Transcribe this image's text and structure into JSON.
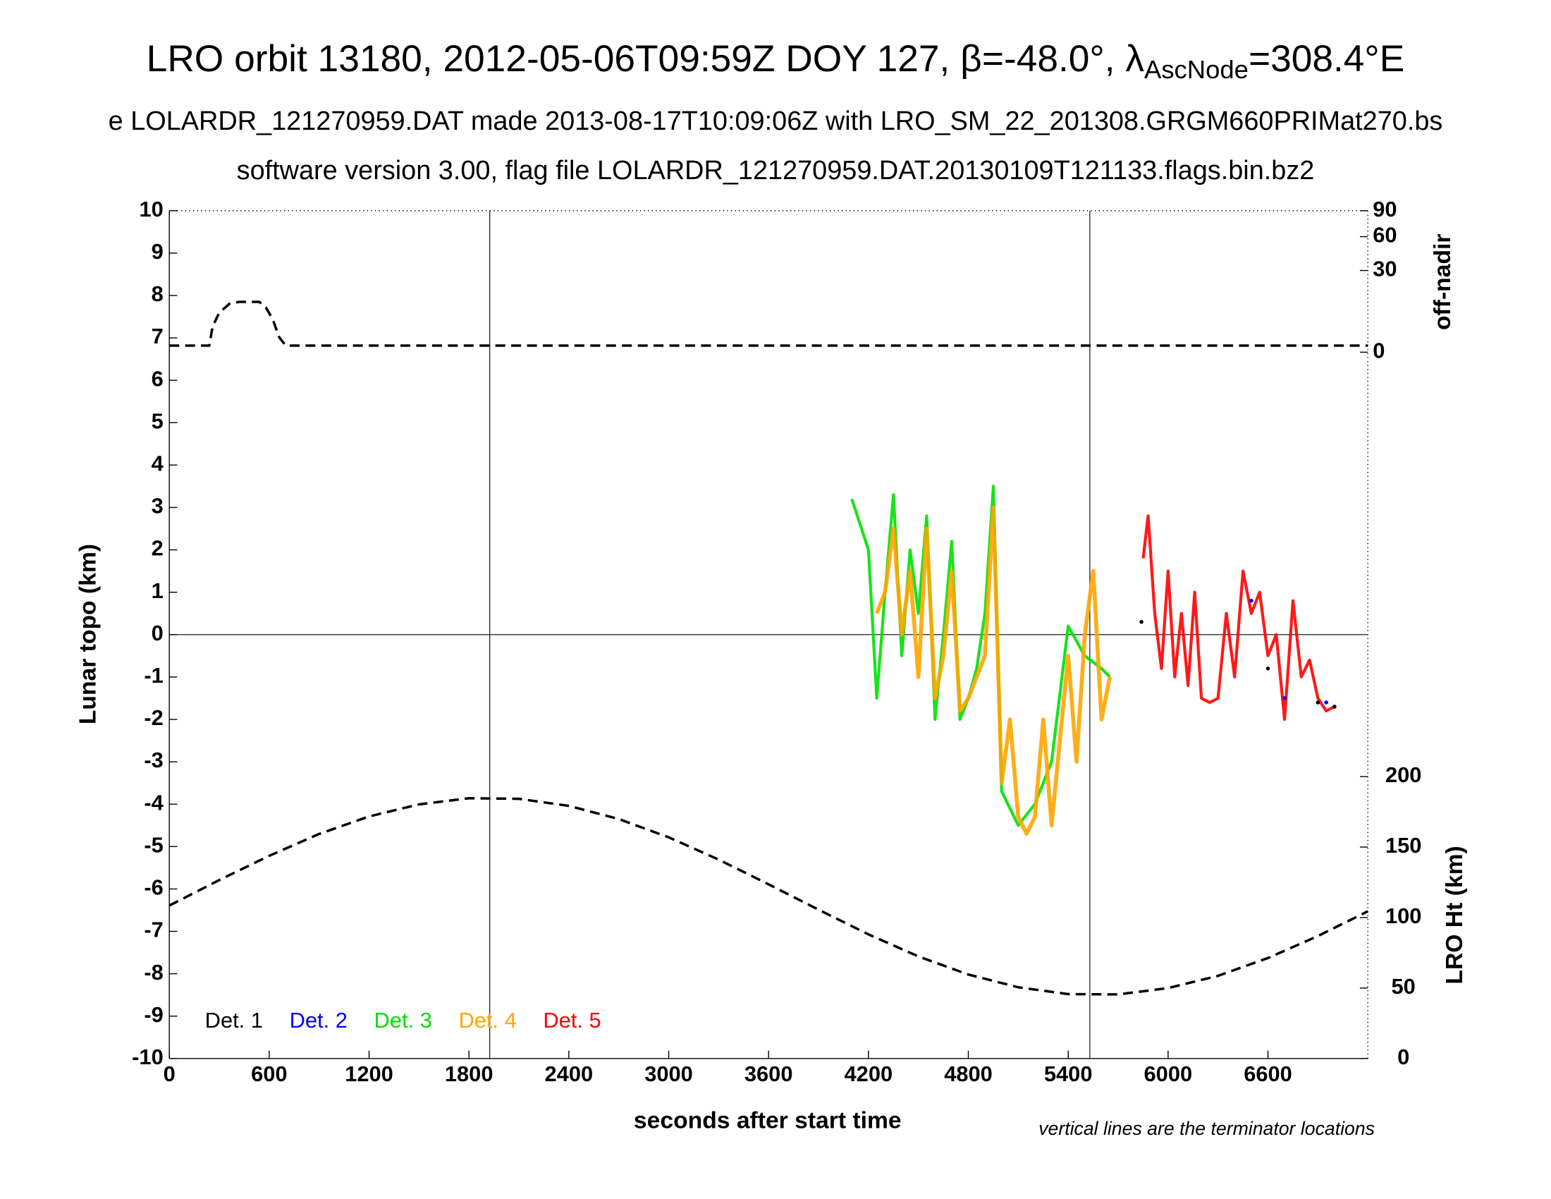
{
  "chart_data": {
    "type": "scatter",
    "title": "LRO orbit 13180, 2012-05-06T09:59Z DOY 127, β=-48.0°, λ",
    "title_sub": "AscNode",
    "title_end": "=308.4°E",
    "subtitle": "e LOLARDR_121270959.DAT made 2013-08-17T10:09:06Z with LRO_SM_22_201308.GRGM660PRIMat270.bs",
    "subtitle2": "software version 3.00, flag file LOLARDR_121270959.DAT.20130109T121133.flags.bin.bz2",
    "xlabel": "seconds after start time",
    "ylabel": "Lunar topo (km)",
    "y2label": "off-nadir",
    "y3label": "LRO Ht (km)",
    "annotation": "vertical lines are the terminator locations",
    "xlim": [
      0,
      7200
    ],
    "xticks": [
      0,
      600,
      1200,
      1800,
      2400,
      3000,
      3600,
      4200,
      4800,
      5400,
      6000,
      6600
    ],
    "ylim": [
      -10,
      10
    ],
    "yticks": [
      -10,
      -9,
      -8,
      -7,
      -6,
      -5,
      -4,
      -3,
      -2,
      -1,
      0,
      1,
      2,
      3,
      4,
      5,
      6,
      7,
      8,
      9,
      10
    ],
    "y2lim": [
      0,
      90
    ],
    "y2scale": "sqrt",
    "y2ticks": [
      0,
      30,
      60,
      90
    ],
    "y3lim": [
      0,
      200
    ],
    "y3ticks": [
      0,
      50,
      100,
      150,
      200
    ],
    "terminators": [
      1925,
      5530
    ],
    "zero_line": 0,
    "series": [
      {
        "name": "Det. 1",
        "color": "#000000",
        "x": [
          5840,
          6600,
          6900,
          7000
        ],
        "values": [
          0.3,
          -0.8,
          -1.6,
          -1.7
        ]
      },
      {
        "name": "Det. 2",
        "color": "#0000ff",
        "x": [
          6500,
          6700,
          6950
        ],
        "values": [
          0.8,
          -1.5,
          -1.6
        ]
      },
      {
        "name": "Det. 3",
        "color": "#00e000",
        "x": [
          4100,
          4200,
          4250,
          4300,
          4350,
          4400,
          4450,
          4500,
          4550,
          4600,
          4650,
          4700,
          4750,
          4800,
          4850,
          4900,
          4950,
          5000,
          5100,
          5200,
          5300,
          5400,
          5500,
          5600,
          5650
        ],
        "values": [
          3.2,
          2.0,
          -1.5,
          1.0,
          3.3,
          -0.5,
          2.0,
          0.5,
          2.8,
          -2.0,
          0.0,
          2.2,
          -2.0,
          -1.5,
          -0.8,
          0.5,
          3.5,
          -3.7,
          -4.5,
          -4.0,
          -3.0,
          0.2,
          -0.5,
          -0.8,
          -1.0
        ]
      },
      {
        "name": "Det. 4",
        "color": "#ffa500",
        "x": [
          4250,
          4300,
          4350,
          4400,
          4450,
          4500,
          4550,
          4600,
          4650,
          4700,
          4750,
          4800,
          4850,
          4900,
          4950,
          5000,
          5050,
          5100,
          5150,
          5200,
          5250,
          5300,
          5350,
          5400,
          5450,
          5500,
          5550,
          5600,
          5650
        ],
        "values": [
          0.5,
          1.0,
          2.5,
          0.0,
          1.5,
          -1.0,
          2.5,
          -1.5,
          -0.5,
          1.5,
          -1.8,
          -1.5,
          -1.0,
          -0.5,
          3.0,
          -3.5,
          -2.0,
          -4.3,
          -4.7,
          -4.3,
          -2.0,
          -4.5,
          -2.5,
          -0.5,
          -3.0,
          0.0,
          1.5,
          -2.0,
          -1.0
        ]
      },
      {
        "name": "Det. 5",
        "color": "#ff0000",
        "x": [
          5850,
          5880,
          5920,
          5960,
          6000,
          6040,
          6080,
          6120,
          6160,
          6200,
          6250,
          6300,
          6350,
          6400,
          6450,
          6500,
          6550,
          6600,
          6650,
          6700,
          6750,
          6800,
          6850,
          6900,
          6950,
          7000
        ],
        "values": [
          1.8,
          2.8,
          0.5,
          -0.8,
          1.5,
          -1.0,
          0.5,
          -1.2,
          1.0,
          -1.5,
          -1.6,
          -1.5,
          0.5,
          -1.0,
          1.5,
          0.5,
          1.0,
          -0.5,
          0.0,
          -2.0,
          0.8,
          -1.0,
          -0.6,
          -1.5,
          -1.8,
          -1.7
        ]
      }
    ],
    "offnadir": {
      "axis": "y2",
      "color": "#000000",
      "x": [
        0,
        240,
        260,
        300,
        360,
        420,
        540,
        580,
        620,
        660,
        680,
        700,
        7200
      ],
      "values": [
        0.2,
        0.2,
        3,
        7,
        10.5,
        11.4,
        11.4,
        9,
        5,
        1,
        0.5,
        0.2,
        0.2
      ]
    },
    "altitude": {
      "axis": "y3",
      "color": "#000000",
      "x": [
        0,
        300,
        600,
        900,
        1200,
        1500,
        1800,
        2100,
        2400,
        2700,
        3000,
        3300,
        3600,
        3900,
        4200,
        4500,
        4800,
        5100,
        5400,
        5700,
        6000,
        6300,
        6600,
        6900,
        7200
      ],
      "values": [
        108.5,
        126.6,
        143.8,
        159.3,
        171.7,
        180.3,
        184.6,
        184.2,
        179.2,
        169.9,
        156.9,
        141.1,
        123.6,
        105.6,
        88.1,
        72.4,
        59.6,
        50.5,
        45.7,
        45.5,
        50.0,
        58.7,
        71.3,
        86.9,
        104.4
      ]
    }
  }
}
